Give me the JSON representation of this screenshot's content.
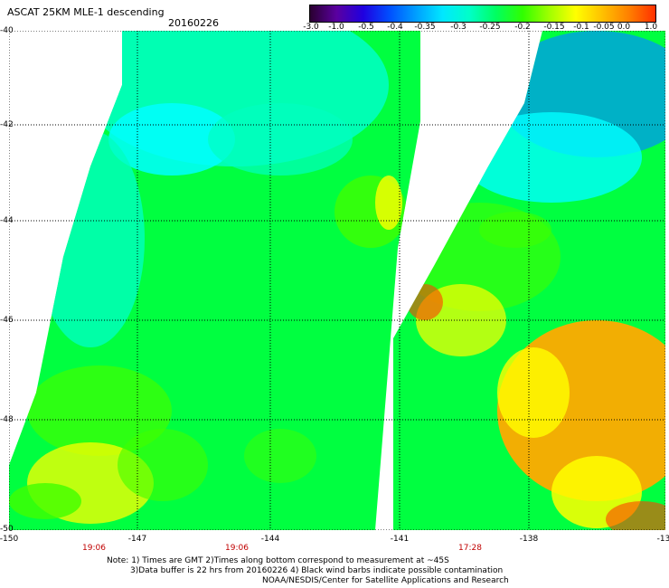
{
  "title": "ASCAT 25KM MLE-1 descending",
  "date": "20160226",
  "colorbar": {
    "labels": [
      "-3.0",
      "-1.0",
      "-0.5",
      "-0.4",
      "-0.35",
      "-0.3",
      "-0.25",
      "-0.2",
      "-0.15",
      "-0.1",
      "-0.05",
      "0.0",
      "1.0"
    ],
    "colors": [
      "#2a0030",
      "#5a00a0",
      "#2000e0",
      "#0050ff",
      "#00a0ff",
      "#00e8ff",
      "#00ffc8",
      "#00ff60",
      "#30ff00",
      "#a0ff00",
      "#ffff00",
      "#ffc000",
      "#ff8000",
      "#ff3000"
    ]
  },
  "map": {
    "lat_labels": [
      "-40",
      "-42",
      "-44",
      "-46",
      "-48",
      "-50"
    ],
    "lon_labels": [
      "-150",
      "-147",
      "-144",
      "-141",
      "-138",
      "-13"
    ],
    "time_labels": [
      "19:06",
      "19:06",
      "17:28"
    ],
    "palette": {
      "cyan": "#00ffff",
      "aqua": "#00ffc0",
      "green": "#00ff40",
      "lime": "#40ff00",
      "yellow": "#ffff00",
      "orange": "#ffaa00",
      "blue": "#0090ff",
      "red": "#ff4000"
    }
  },
  "notes": {
    "line1": "Note: 1) Times are GMT 2)Times along bottom correspond to measurement at ~45S",
    "line2": "3)Data buffer is 22 hrs from 20160226 4) Black wind barbs indicate possible contamination",
    "line3": "NOAA/NESDIS/Center for Satellite Applications and Research"
  }
}
